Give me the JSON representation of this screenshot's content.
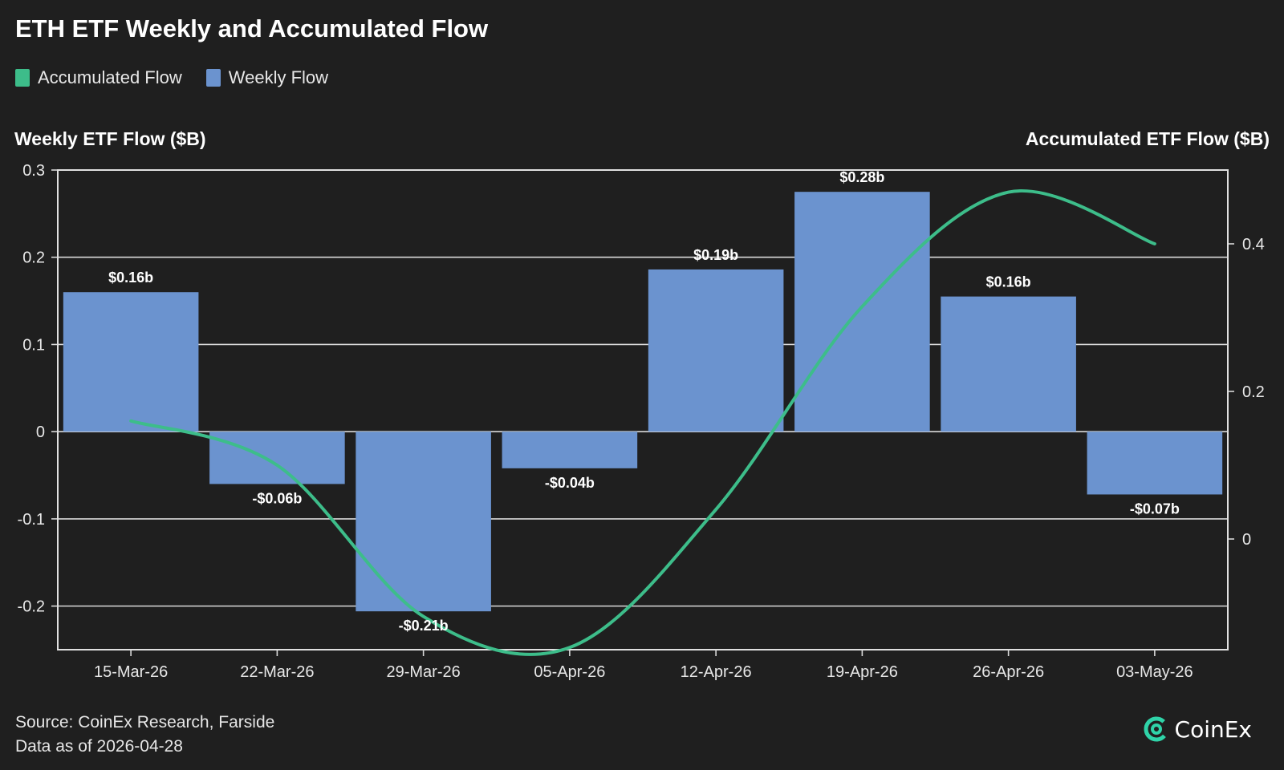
{
  "title": "ETH ETF Weekly and Accumulated Flow",
  "legend": [
    {
      "label": "Accumulated Flow",
      "color": "#3dbd8a"
    },
    {
      "label": "Weekly Flow",
      "color": "#6b93cf"
    }
  ],
  "footer": {
    "source": "Source: CoinEx Research, Farside",
    "date": "Data as of 2026-04-28"
  },
  "brand": {
    "name": "CoinEx"
  },
  "chart_data": {
    "type": "bar",
    "title": "ETH ETF Weekly and Accumulated Flow",
    "categories": [
      "15-Mar-26",
      "22-Mar-26",
      "29-Mar-26",
      "05-Apr-26",
      "12-Apr-26",
      "19-Apr-26",
      "26-Apr-26",
      "03-May-26"
    ],
    "ylabel": "Weekly ETF Flow ($B)",
    "y2label": "Accumulated ETF Flow ($B)",
    "ylim": [
      -0.25,
      0.3
    ],
    "y2lim": [
      -0.15,
      0.5
    ],
    "yticks": [
      0.3,
      0.2,
      0.1,
      0,
      -0.1,
      -0.2
    ],
    "ytick_labels": [
      "0.3",
      "0.2",
      "0.1",
      "0",
      "-0.1",
      "-0.2"
    ],
    "y2ticks": [
      0.4,
      0.2,
      0
    ],
    "y2tick_labels": [
      "0.4",
      "0.2",
      "0"
    ],
    "grid": true,
    "legend_position": "top-left",
    "series": [
      {
        "name": "Weekly Flow",
        "type": "bar",
        "axis": "left",
        "color": "#6b93cf",
        "values": [
          0.16,
          -0.06,
          -0.206,
          -0.042,
          0.186,
          0.275,
          0.155,
          -0.072
        ],
        "labels": [
          "$0.16b",
          "-$0.06b",
          "-$0.21b",
          "-$0.04b",
          "$0.19b",
          "$0.28b",
          "$0.16b",
          "-$0.07b"
        ]
      },
      {
        "name": "Accumulated Flow",
        "type": "line",
        "axis": "right",
        "color": "#3dbd8a",
        "values": [
          0.16,
          0.1,
          -0.105,
          -0.147,
          0.04,
          0.315,
          0.47,
          0.4
        ]
      }
    ]
  }
}
